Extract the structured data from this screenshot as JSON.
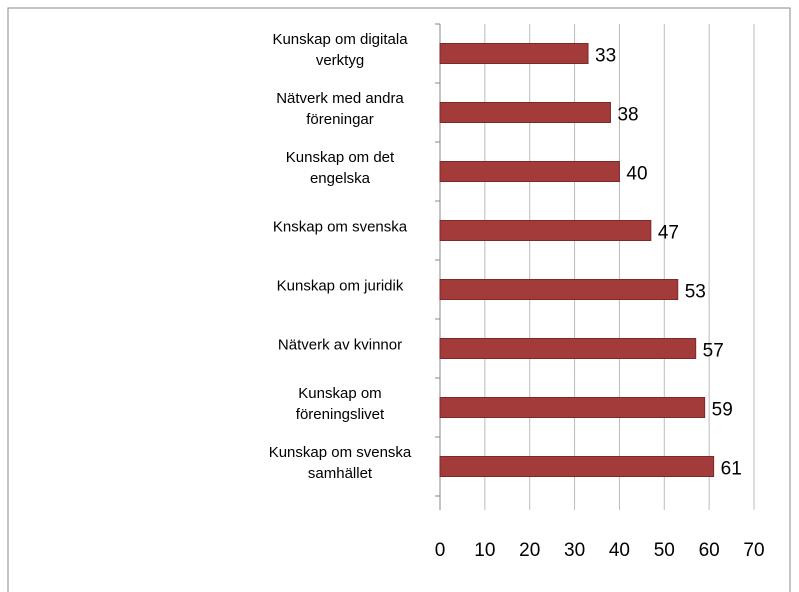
{
  "chart_data": {
    "type": "bar",
    "orientation": "horizontal",
    "categories": [
      "Kunskap om digitala verktyg",
      "Nätverk med andra föreningar",
      "Kunskap om det engelska",
      "Knskap om svenska",
      "Kunskap om juridik",
      "Nätverk av kvinnor",
      "Kunskap om föreningslivet",
      "Kunskap om svenska samhället"
    ],
    "values": [
      33,
      38,
      40,
      47,
      53,
      57,
      59,
      61
    ],
    "color": "#a33b3b",
    "xlim": [
      0,
      70
    ],
    "xticks": [
      0,
      10,
      20,
      30,
      40,
      50,
      60,
      70
    ],
    "grid": true
  }
}
